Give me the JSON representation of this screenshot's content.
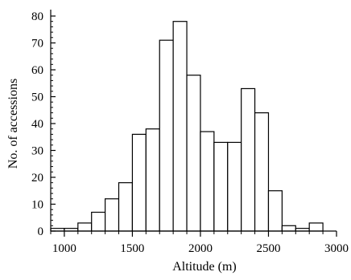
{
  "chart_data": {
    "type": "bar",
    "xlabel": "Altitude (m)",
    "ylabel": "No. of accessions",
    "xlim": [
      900,
      3000
    ],
    "ylim": [
      0,
      80
    ],
    "x_ticks": [
      1000,
      1500,
      2000,
      2500,
      3000
    ],
    "x_tick_labels": [
      "1000",
      "1500",
      "2000",
      "2500",
      "3000"
    ],
    "x_minor_step": 100,
    "y_ticks": [
      0,
      10,
      20,
      30,
      40,
      50,
      60,
      70,
      80
    ],
    "y_tick_labels": [
      "0",
      "10",
      "20",
      "30",
      "40",
      "50",
      "60",
      "70",
      "80"
    ],
    "y_minor_step": 2,
    "bin_width": 100,
    "bins": [
      {
        "start": 900,
        "end": 1000,
        "value": 1
      },
      {
        "start": 1000,
        "end": 1100,
        "value": 1
      },
      {
        "start": 1100,
        "end": 1200,
        "value": 3
      },
      {
        "start": 1200,
        "end": 1300,
        "value": 7
      },
      {
        "start": 1300,
        "end": 1400,
        "value": 12
      },
      {
        "start": 1400,
        "end": 1500,
        "value": 18
      },
      {
        "start": 1500,
        "end": 1600,
        "value": 36
      },
      {
        "start": 1600,
        "end": 1700,
        "value": 38
      },
      {
        "start": 1700,
        "end": 1800,
        "value": 71
      },
      {
        "start": 1800,
        "end": 1900,
        "value": 78
      },
      {
        "start": 1900,
        "end": 2000,
        "value": 58
      },
      {
        "start": 2000,
        "end": 2100,
        "value": 37
      },
      {
        "start": 2100,
        "end": 2200,
        "value": 33
      },
      {
        "start": 2200,
        "end": 2300,
        "value": 33
      },
      {
        "start": 2300,
        "end": 2400,
        "value": 53
      },
      {
        "start": 2400,
        "end": 2500,
        "value": 44
      },
      {
        "start": 2500,
        "end": 2600,
        "value": 15
      },
      {
        "start": 2600,
        "end": 2700,
        "value": 2
      },
      {
        "start": 2700,
        "end": 2800,
        "value": 1
      },
      {
        "start": 2800,
        "end": 2900,
        "value": 3
      }
    ],
    "grid": false,
    "legend": "none"
  }
}
